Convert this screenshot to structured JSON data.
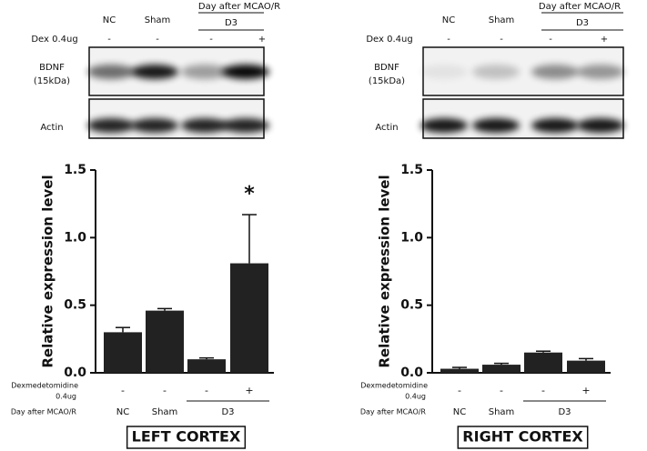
{
  "chart_data": [
    {
      "type": "bar",
      "title": "LEFT CORTEX",
      "ylabel": "Relative expression level",
      "categories": [
        "-",
        "-",
        "-",
        "+"
      ],
      "groups": [
        "NC",
        "Sham",
        "D3"
      ],
      "row_labels": [
        "Dexmedetomidine",
        "0.4ug",
        "Day after MCAO/R"
      ],
      "values": [
        0.3,
        0.46,
        0.1,
        0.81
      ],
      "errors": [
        0.035,
        0.015,
        0.01,
        0.36
      ],
      "annotation": "*",
      "color": "#222222",
      "ylim": [
        0,
        1.5
      ],
      "yticks": [
        {
          "value": 0,
          "label": "0.0"
        },
        0.5,
        {
          "value": 1,
          "label": "1.0"
        },
        1.5
      ]
    },
    {
      "type": "bar",
      "title": "RIGHT CORTEX",
      "ylabel": "Relative expression level",
      "categories": [
        "-",
        "-",
        "-",
        "+"
      ],
      "groups": [
        "NC",
        "Sham",
        "D3"
      ],
      "row_labels": [
        "Dexmedetomidine",
        "0.4ug",
        "Day after MCAO/R"
      ],
      "values": [
        0.03,
        0.06,
        0.15,
        0.09
      ],
      "errors": [
        0.01,
        0.01,
        0.01,
        0.015
      ],
      "color": "#222222",
      "ylim": [
        0,
        1.5
      ],
      "yticks": [
        {
          "value": 0,
          "label": "0.0"
        },
        0.5,
        {
          "value": 1,
          "label": "1.0"
        },
        1.5
      ]
    }
  ],
  "blots": [
    {
      "header": "Day after MCAO/R",
      "lanes": [
        "NC",
        "Sham"
      ],
      "group": "D3",
      "dex_label": "Dex 0.4ug",
      "dex": [
        "-",
        "-",
        "-",
        "+"
      ],
      "bands": [
        "BDNF",
        "(15kDa)",
        "Actin"
      ]
    },
    {
      "header": "Day after MCAO/R",
      "lanes": [
        "NC",
        "Sham"
      ],
      "group": "D3",
      "dex_label": "Dex 0.4ug",
      "dex": [
        "-",
        "-",
        "-",
        "+"
      ],
      "bands": [
        "BDNF",
        "(15kDa)",
        "Actin"
      ]
    }
  ]
}
